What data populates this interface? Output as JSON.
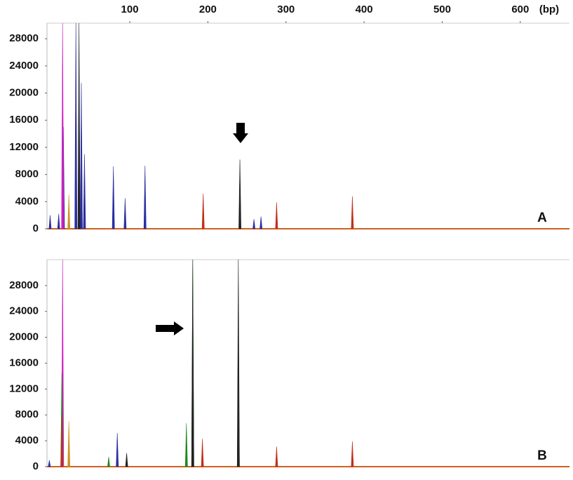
{
  "chart_data": [
    {
      "type": "electropherogram",
      "panel_label": "A",
      "xlabel": "(bp)",
      "xlim": [
        -6,
        663
      ],
      "xticks": [
        100,
        200,
        300,
        400,
        500,
        600
      ],
      "ylim": [
        0,
        30300
      ],
      "yticks": [
        0,
        4000,
        8000,
        12000,
        16000,
        20000,
        24000,
        28000
      ],
      "series": [
        {
          "color": "#2b2fa0",
          "x": [
            -2,
            9,
            15,
            31,
            38,
            42,
            79,
            94,
            119.5,
            259,
            268
          ],
          "values": [
            2000,
            2200,
            15000,
            30300,
            21500,
            11000,
            9200,
            4500,
            9300,
            1400,
            1800
          ]
        },
        {
          "color": "#d020c0",
          "x": [
            14
          ],
          "values": [
            30300
          ]
        },
        {
          "color": "#d09020",
          "x": [
            22
          ],
          "values": [
            5000
          ]
        },
        {
          "color": "#222222",
          "x": [
            35,
            241
          ],
          "values": [
            30300,
            10200
          ]
        },
        {
          "color": "#c0301a",
          "x": [
            194,
            288,
            385
          ],
          "values": [
            5200,
            3900,
            4800
          ]
        }
      ]
    },
    {
      "type": "electropherogram",
      "panel_label": "B",
      "xlim": [
        -6,
        663
      ],
      "ylim": [
        0,
        32000
      ],
      "yticks": [
        0,
        4000,
        8000,
        12000,
        16000,
        20000,
        24000,
        28000
      ],
      "series": [
        {
          "color": "#d020c0",
          "x": [
            14
          ],
          "values": [
            32000
          ]
        },
        {
          "color": "#1a8a1a",
          "x": [
            13,
            73,
            172.5,
            180.6,
            239
          ],
          "values": [
            14500,
            1500,
            6700,
            32000,
            14500
          ]
        },
        {
          "color": "#d09020",
          "x": [
            22
          ],
          "values": [
            7000
          ]
        },
        {
          "color": "#2b2fa0",
          "x": [
            -3,
            84
          ],
          "values": [
            1000,
            5200
          ]
        },
        {
          "color": "#222222",
          "x": [
            96,
            180.6,
            239
          ],
          "values": [
            2100,
            32000,
            32000
          ]
        },
        {
          "color": "#c0301a",
          "x": [
            13,
            193,
            288,
            385
          ],
          "values": [
            8000,
            4300,
            3100,
            3900
          ]
        }
      ]
    }
  ]
}
